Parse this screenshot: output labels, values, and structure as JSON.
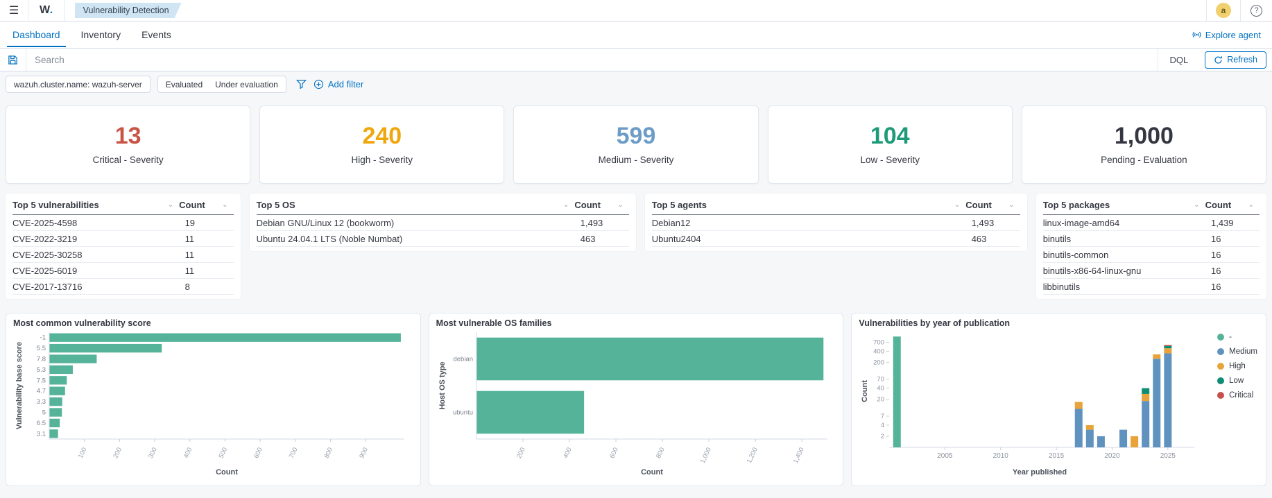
{
  "header": {
    "logo_text": "W",
    "logo_dot": ".",
    "badge": "Vulnerability Detection",
    "avatar_letter": "a",
    "help_label": "?"
  },
  "tabs": [
    {
      "label": "Dashboard",
      "active": true
    },
    {
      "label": "Inventory",
      "active": false
    },
    {
      "label": "Events",
      "active": false
    }
  ],
  "explore_agent_label": "Explore agent",
  "search": {
    "placeholder": "Search",
    "language": "DQL",
    "refresh_label": "Refresh"
  },
  "filters": {
    "cluster_pill": "wazuh.cluster.name: wazuh-server",
    "toggles": [
      "Evaluated",
      "Under evaluation"
    ],
    "add_filter_label": "Add filter"
  },
  "stats": [
    {
      "value": "13",
      "label": "Critical - Severity",
      "color": "#ca5444"
    },
    {
      "value": "240",
      "label": "High - Severity",
      "color": "#f0a70d"
    },
    {
      "value": "599",
      "label": "Medium - Severity",
      "color": "#6d9dc7"
    },
    {
      "value": "104",
      "label": "Low - Severity",
      "color": "#1d9a78"
    },
    {
      "value": "1,000",
      "label": "Pending - Evaluation",
      "color": "#343741"
    }
  ],
  "tables": [
    {
      "title": "Top 5 vulnerabilities",
      "count_label": "Count",
      "flex": 1.02,
      "rows": [
        [
          "CVE-2025-4598",
          "19"
        ],
        [
          "CVE-2022-3219",
          "11"
        ],
        [
          "CVE-2025-30258",
          "11"
        ],
        [
          "CVE-2025-6019",
          "11"
        ],
        [
          "CVE-2017-13716",
          "8"
        ]
      ]
    },
    {
      "title": "Top 5 OS",
      "count_label": "Count",
      "flex": 1.72,
      "rows": [
        [
          "Debian GNU/Linux 12 (bookworm)",
          "1,493"
        ],
        [
          "Ubuntu 24.04.1 LTS (Noble Numbat)",
          "463"
        ]
      ]
    },
    {
      "title": "Top 5 agents",
      "count_label": "Count",
      "flex": 1.7,
      "rows": [
        [
          "Debian12",
          "1,493"
        ],
        [
          "Ubuntu2404",
          "463"
        ]
      ]
    },
    {
      "title": "Top 5 packages",
      "count_label": "Count",
      "flex": 1.0,
      "rows": [
        [
          "linux-image-amd64",
          "1,439"
        ],
        [
          "binutils",
          "16"
        ],
        [
          "binutils-common",
          "16"
        ],
        [
          "binutils-x86-64-linux-gnu",
          "16"
        ],
        [
          "libbinutils",
          "16"
        ]
      ]
    }
  ],
  "chart_data": [
    {
      "type": "bar",
      "orientation": "horizontal",
      "title": "Most common vulnerability score",
      "categories": [
        "-1",
        "5.5",
        "7.8",
        "5.3",
        "7.5",
        "4.7",
        "3.3",
        "5",
        "6.5",
        "3.1"
      ],
      "values": [
        1000,
        320,
        135,
        67,
        50,
        45,
        37,
        36,
        30,
        25
      ],
      "xlabel": "Count",
      "ylabel": "Vulnerability base score",
      "xlim": [
        0,
        1010
      ],
      "xticks": [
        100,
        200,
        300,
        400,
        500,
        600,
        700,
        800,
        900
      ],
      "color": "#54b399",
      "grid": false
    },
    {
      "type": "bar",
      "orientation": "horizontal",
      "title": "Most vulnerable OS families",
      "categories": [
        "debian",
        "ubuntu"
      ],
      "values": [
        1493,
        463
      ],
      "xlabel": "Count",
      "ylabel": "Host OS type",
      "xlim": [
        0,
        1510
      ],
      "xticks": [
        200,
        400,
        600,
        800,
        1000,
        1200,
        1400
      ],
      "color": "#54b399",
      "grid": false
    },
    {
      "type": "bar",
      "orientation": "vertical",
      "stacked": true,
      "yscale": "log",
      "title": "Vulnerabilities by year of publication",
      "xlabel": "Year published",
      "ylabel": "Count",
      "xlim": [
        2000,
        2027
      ],
      "xticks": [
        2005,
        2010,
        2015,
        2020,
        2025
      ],
      "yticks": [
        2,
        4,
        7,
        20,
        40,
        70,
        200,
        400,
        700
      ],
      "ylim": [
        1,
        1100
      ],
      "legend_position": "top-right",
      "grid": false,
      "series": [
        {
          "name": "-",
          "color": "#54b399",
          "points": [
            {
              "x": 2000.7,
              "y": 1000
            }
          ]
        },
        {
          "name": "Medium",
          "color": "#6092c0",
          "points": [
            {
              "x": 2017,
              "y": 11
            },
            {
              "x": 2018,
              "y": 3
            },
            {
              "x": 2019,
              "y": 2
            },
            {
              "x": 2021,
              "y": 3
            },
            {
              "x": 2023,
              "y": 18
            },
            {
              "x": 2024,
              "y": 250
            },
            {
              "x": 2025,
              "y": 350
            }
          ]
        },
        {
          "name": "High",
          "color": "#e9a33b",
          "points": [
            {
              "x": 2017,
              "y": 6
            },
            {
              "x": 2018,
              "y": 1
            },
            {
              "x": 2022,
              "y": 2
            },
            {
              "x": 2023,
              "y": 10
            },
            {
              "x": 2024,
              "y": 80
            },
            {
              "x": 2025,
              "y": 130
            }
          ]
        },
        {
          "name": "Low",
          "color": "#0e8d74",
          "points": [
            {
              "x": 2023,
              "y": 12
            },
            {
              "x": 2025,
              "y": 95
            }
          ]
        },
        {
          "name": "Critical",
          "color": "#c4514c",
          "points": [
            {
              "x": 2025,
              "y": 15
            }
          ]
        }
      ]
    }
  ]
}
